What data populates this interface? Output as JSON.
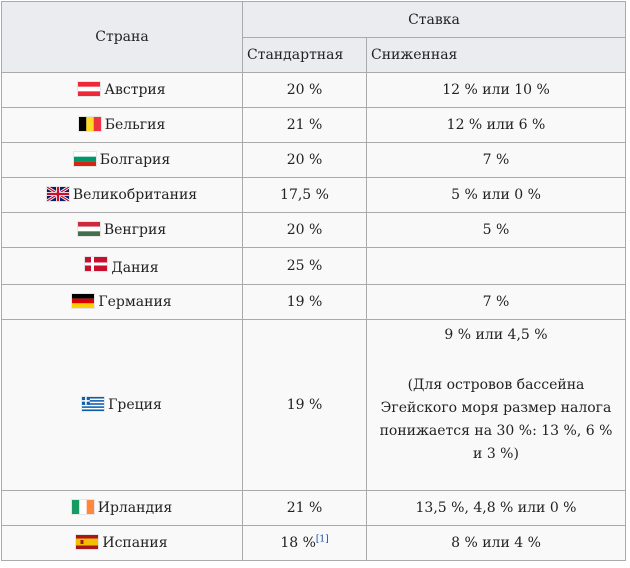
{
  "header": {
    "country": "Страна",
    "rate": "Ставка",
    "standard": "Стандартная",
    "reduced": "Сниженная"
  },
  "rows": [
    {
      "country": "Австрия",
      "flag": "austria-flag",
      "standard": "20 %",
      "reduced": "12 % или 10 %"
    },
    {
      "country": "Бельгия",
      "flag": "belgium-flag",
      "standard": "21 %",
      "reduced": "12 % или 6 %"
    },
    {
      "country": "Болгария",
      "flag": "bulgaria-flag",
      "standard": "20 %",
      "reduced": "7 %"
    },
    {
      "country": "Великобритания",
      "flag": "uk-flag",
      "standard": "17,5 %",
      "reduced": "5 % или 0 %"
    },
    {
      "country": "Венгрия",
      "flag": "hungary-flag",
      "standard": "20 %",
      "reduced": "5 %"
    },
    {
      "country": "Дания",
      "flag": "denmark-flag",
      "standard": "25 %",
      "reduced": ""
    },
    {
      "country": "Германия",
      "flag": "germany-flag",
      "standard": "19 %",
      "reduced": "7 %"
    },
    {
      "country": "Греция",
      "flag": "greece-flag",
      "standard": "19 %",
      "reduced": "9 % или 4,5 %",
      "note": "(Для островов бассейна Эгейского моря размер налога понижается на 30 %: 13 %, 6 % и 3 %)"
    },
    {
      "country": "Ирландия",
      "flag": "ireland-flag",
      "standard": "21 %",
      "reduced": "13,5 %, 4,8 % или 0 %"
    },
    {
      "country": "Испания",
      "flag": "spain-flag",
      "standard": "18 %",
      "standard_ref": "[1]",
      "reduced": "8 % или 4 %"
    }
  ],
  "colors": {
    "header_bg": "#eaecf0",
    "cell_bg": "#f9f9f9",
    "border": "#aaaaaa",
    "text": "#222222"
  }
}
